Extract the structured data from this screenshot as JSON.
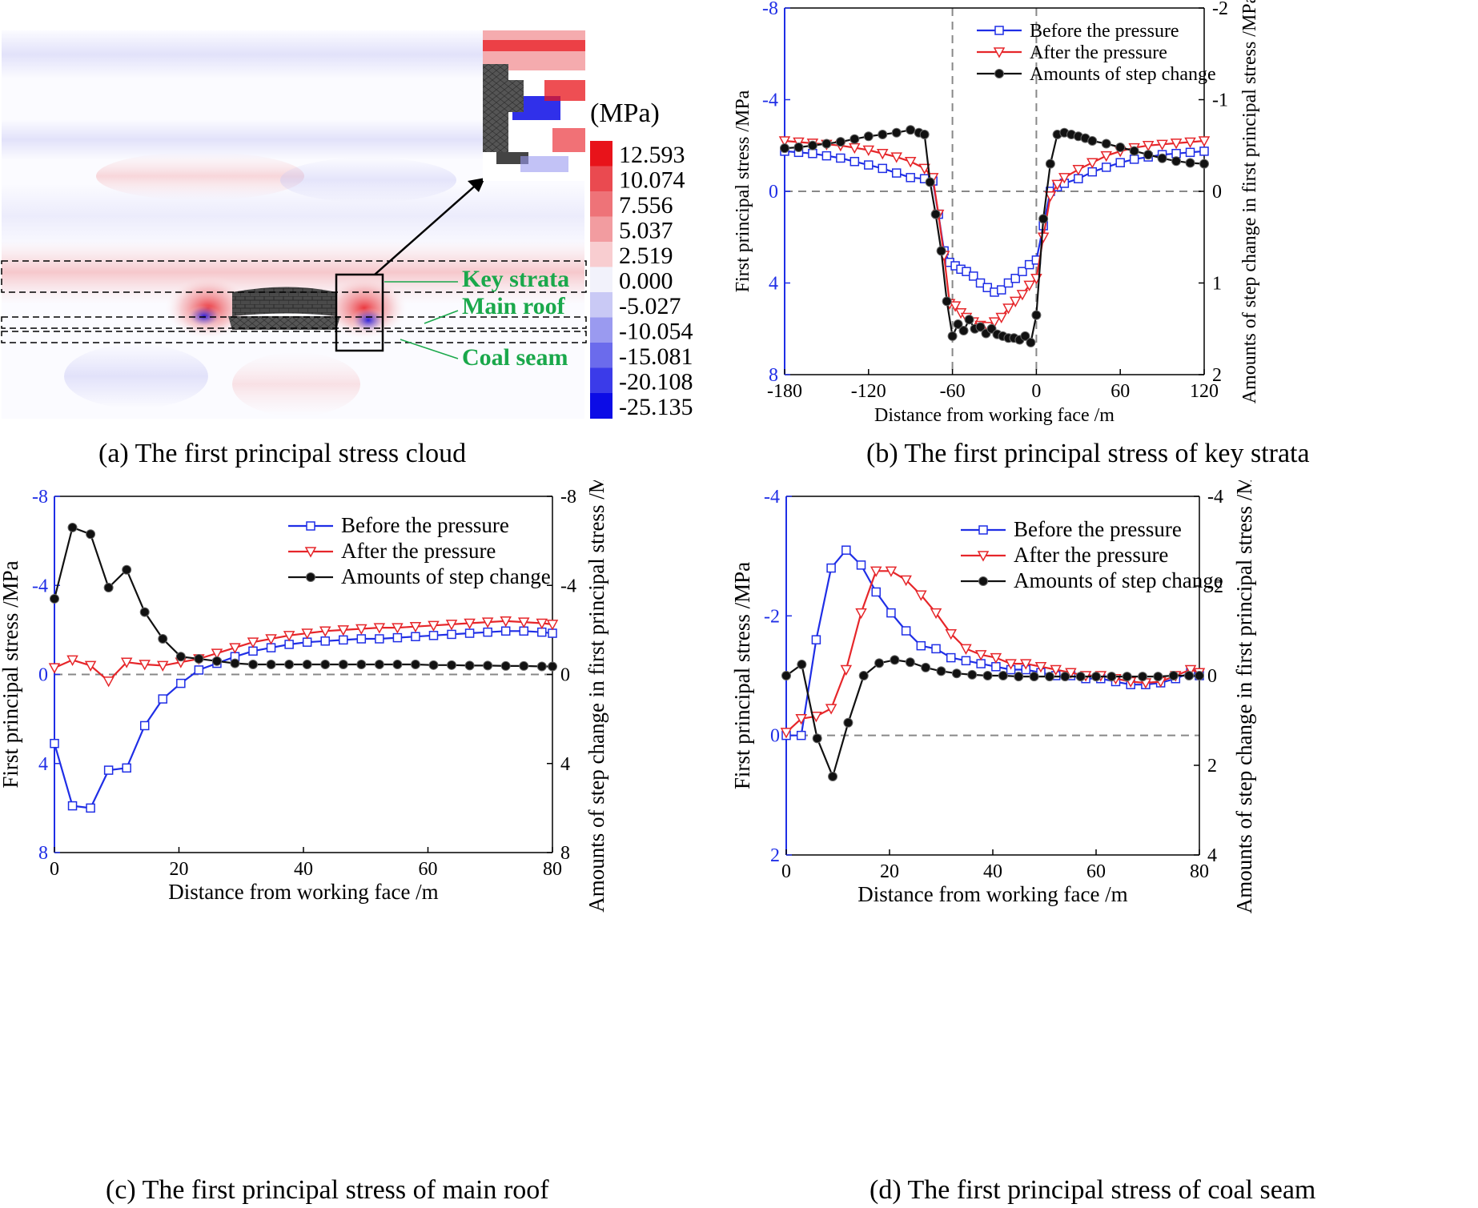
{
  "captions": {
    "a": "(a)  The first principal stress cloud",
    "b": "(b)  The first principal stress of key strata",
    "c": "(c)  The first principal stress of main roof",
    "d": "(d)  The first principal stress of coal seam"
  },
  "cloud": {
    "unit": "(MPa)",
    "legend_values": [
      "12.593",
      "10.074",
      "7.556",
      "5.037",
      "2.519",
      "0.000",
      "-5.027",
      "-10.054",
      "-15.081",
      "-20.108",
      "-25.135"
    ],
    "legend_colors": [
      "#e8131a",
      "#ea4a50",
      "#ee7378",
      "#f29ca0",
      "#f8cdd0",
      "#f2f2fb",
      "#c9c9f5",
      "#9a9af0",
      "#6b6bec",
      "#3b3be9",
      "#0c0ce6"
    ],
    "labels": {
      "key_strata": "Key strata",
      "main_roof": "Main roof",
      "coal_seam": "Coal seam"
    },
    "label_color": "#1aa84b"
  },
  "legend": {
    "before": "Before the pressure",
    "after": "After the pressure",
    "step": "Amounts of step change"
  },
  "colors": {
    "before": "#1f2ee6",
    "after": "#e6262a",
    "step": "#111111",
    "left_axis": "#1f2ee6"
  },
  "chart_data": [
    {
      "id": "b",
      "type": "line",
      "xlabel": "Distance from working face /m",
      "ylabel": "First principal stress /MPa",
      "ylabel2": "Amounts of step change in first principal stress /MPa",
      "xlim": [
        -180,
        120
      ],
      "xticks": [
        -180,
        -120,
        -60,
        0,
        60,
        120
      ],
      "ylim": [
        -8,
        8
      ],
      "yticks": [
        -8,
        -4,
        0,
        4,
        8
      ],
      "y_inverted": true,
      "y2lim": [
        -2,
        2
      ],
      "y2ticks": [
        -2,
        -1,
        0,
        1,
        2
      ],
      "vlines": [
        -60,
        0
      ],
      "series": [
        {
          "name": "Before the pressure",
          "axis": "left",
          "marker": "square",
          "x": [
            -180,
            -170,
            -160,
            -150,
            -140,
            -130,
            -120,
            -110,
            -100,
            -90,
            -80,
            -74,
            -70,
            -66,
            -62,
            -58,
            -54,
            -50,
            -45,
            -40,
            -35,
            -30,
            -25,
            -20,
            -15,
            -10,
            -5,
            0,
            5,
            10,
            15,
            20,
            30,
            40,
            50,
            60,
            70,
            80,
            90,
            100,
            110,
            120
          ],
          "y": [
            -1.75,
            -1.7,
            -1.65,
            -1.55,
            -1.45,
            -1.3,
            -1.15,
            -1.0,
            -0.8,
            -0.6,
            -0.55,
            -0.45,
            1.0,
            2.6,
            3.1,
            3.25,
            3.4,
            3.5,
            3.7,
            4.0,
            4.2,
            4.4,
            4.3,
            4.0,
            3.8,
            3.5,
            3.2,
            3.0,
            1.5,
            0.0,
            -0.2,
            -0.35,
            -0.55,
            -0.85,
            -1.05,
            -1.25,
            -1.4,
            -1.5,
            -1.6,
            -1.65,
            -1.7,
            -1.75
          ]
        },
        {
          "name": "After the pressure",
          "axis": "left",
          "marker": "tri_down",
          "x": [
            -180,
            -170,
            -160,
            -150,
            -140,
            -130,
            -120,
            -110,
            -100,
            -90,
            -80,
            -74,
            -70,
            -66,
            -62,
            -58,
            -54,
            -50,
            -45,
            -40,
            -35,
            -30,
            -25,
            -20,
            -15,
            -10,
            -5,
            0,
            5,
            10,
            15,
            20,
            30,
            40,
            50,
            60,
            70,
            80,
            90,
            100,
            110,
            120
          ],
          "y": [
            -2.2,
            -2.15,
            -2.1,
            -2.05,
            -2.0,
            -1.9,
            -1.8,
            -1.65,
            -1.5,
            -1.3,
            -1.0,
            -0.6,
            1.0,
            2.8,
            4.9,
            5.0,
            5.3,
            5.5,
            5.7,
            5.85,
            5.9,
            5.7,
            5.5,
            5.1,
            4.8,
            4.5,
            4.1,
            3.8,
            2.0,
            0.2,
            -0.3,
            -0.6,
            -0.95,
            -1.25,
            -1.55,
            -1.75,
            -1.9,
            -2.0,
            -2.05,
            -2.1,
            -2.15,
            -2.2
          ]
        },
        {
          "name": "Amounts of step change",
          "axis": "right",
          "marker": "circle",
          "x": [
            -180,
            -170,
            -160,
            -150,
            -140,
            -130,
            -120,
            -110,
            -100,
            -90,
            -84,
            -80,
            -76,
            -72,
            -68,
            -64,
            -60,
            -56,
            -52,
            -48,
            -44,
            -40,
            -36,
            -32,
            -28,
            -24,
            -20,
            -16,
            -12,
            -8,
            -4,
            0,
            5,
            10,
            15,
            20,
            25,
            30,
            35,
            40,
            50,
            60,
            70,
            80,
            90,
            100,
            110,
            120
          ],
          "y": [
            -0.47,
            -0.48,
            -0.5,
            -0.52,
            -0.54,
            -0.57,
            -0.6,
            -0.62,
            -0.64,
            -0.67,
            -0.64,
            -0.62,
            -0.1,
            0.25,
            0.65,
            1.2,
            1.58,
            1.45,
            1.52,
            1.4,
            1.5,
            1.48,
            1.55,
            1.5,
            1.56,
            1.58,
            1.6,
            1.6,
            1.62,
            1.58,
            1.65,
            1.35,
            0.3,
            -0.3,
            -0.62,
            -0.64,
            -0.62,
            -0.6,
            -0.58,
            -0.55,
            -0.52,
            -0.48,
            -0.44,
            -0.4,
            -0.36,
            -0.33,
            -0.31,
            -0.3
          ]
        }
      ]
    },
    {
      "id": "c",
      "type": "line",
      "xlabel": "Distance from working face /m",
      "ylabel": "First principal stress /MPa",
      "ylabel2": "Amounts of step change in first principal stress /MPa",
      "xlim": [
        0,
        80
      ],
      "xticks": [
        0,
        20,
        40,
        60,
        80
      ],
      "ylim": [
        -8,
        8
      ],
      "yticks": [
        -8,
        -4,
        0,
        4,
        8
      ],
      "y_inverted": true,
      "y2lim": [
        -8,
        8
      ],
      "y2ticks": [
        -8,
        -4,
        0,
        4,
        8
      ],
      "series": [
        {
          "name": "Before the pressure",
          "axis": "left",
          "marker": "square",
          "x": [
            0,
            2.9,
            5.8,
            8.7,
            11.6,
            14.5,
            17.4,
            20.3,
            23.2,
            26.1,
            29,
            31.9,
            34.8,
            37.7,
            40.6,
            43.5,
            46.4,
            49.3,
            52.2,
            55.1,
            58,
            60.9,
            63.8,
            66.7,
            69.6,
            72.5,
            75.4,
            78.3,
            80
          ],
          "y": [
            3.1,
            5.9,
            6.0,
            4.3,
            4.2,
            2.3,
            1.1,
            0.4,
            -0.2,
            -0.5,
            -0.8,
            -1.05,
            -1.2,
            -1.35,
            -1.45,
            -1.5,
            -1.55,
            -1.6,
            -1.6,
            -1.65,
            -1.7,
            -1.75,
            -1.8,
            -1.85,
            -1.9,
            -1.95,
            -1.95,
            -1.9,
            -1.85
          ]
        },
        {
          "name": "After the pressure",
          "axis": "left",
          "marker": "tri_down",
          "x": [
            0,
            2.9,
            5.8,
            8.7,
            11.6,
            14.5,
            17.4,
            20.3,
            23.2,
            26.1,
            29,
            31.9,
            34.8,
            37.7,
            40.6,
            43.5,
            46.4,
            49.3,
            52.2,
            55.1,
            58,
            60.9,
            63.8,
            66.7,
            69.6,
            72.5,
            75.4,
            78.3,
            80
          ],
          "y": [
            -0.3,
            -0.65,
            -0.4,
            0.3,
            -0.55,
            -0.45,
            -0.4,
            -0.55,
            -0.7,
            -0.95,
            -1.2,
            -1.45,
            -1.6,
            -1.75,
            -1.85,
            -1.95,
            -2.0,
            -2.05,
            -2.1,
            -2.1,
            -2.15,
            -2.2,
            -2.25,
            -2.3,
            -2.35,
            -2.4,
            -2.35,
            -2.3,
            -2.25
          ]
        },
        {
          "name": "Amounts of step change",
          "axis": "right",
          "marker": "circle",
          "x": [
            0,
            2.9,
            5.8,
            8.7,
            11.6,
            14.5,
            17.4,
            20.3,
            23.2,
            26.1,
            29,
            31.9,
            34.8,
            37.7,
            40.6,
            43.5,
            46.4,
            49.3,
            52.2,
            55.1,
            58,
            60.9,
            63.8,
            66.7,
            69.6,
            72.5,
            75.4,
            78.3,
            80
          ],
          "y": [
            -3.4,
            -6.6,
            -6.3,
            -3.9,
            -4.7,
            -2.8,
            -1.6,
            -0.8,
            -0.7,
            -0.6,
            -0.5,
            -0.45,
            -0.45,
            -0.45,
            -0.45,
            -0.45,
            -0.45,
            -0.45,
            -0.45,
            -0.45,
            -0.45,
            -0.42,
            -0.42,
            -0.4,
            -0.4,
            -0.38,
            -0.38,
            -0.36,
            -0.36
          ]
        }
      ]
    },
    {
      "id": "d",
      "type": "line",
      "xlabel": "Distance from working face /m",
      "ylabel": "First principal stress /MPa",
      "ylabel2": "Amounts of step change in first principal stress /MPa",
      "xlim": [
        0,
        80
      ],
      "xticks": [
        0,
        20,
        40,
        60,
        80
      ],
      "ylim": [
        -4,
        2
      ],
      "yticks": [
        -4,
        -2,
        0,
        2
      ],
      "y_inverted": true,
      "y2lim": [
        -4,
        4
      ],
      "y2ticks": [
        -4,
        -2,
        0,
        2,
        4
      ],
      "series": [
        {
          "name": "Before the pressure",
          "axis": "left",
          "marker": "square",
          "x": [
            0,
            2.9,
            5.8,
            8.7,
            11.6,
            14.5,
            17.4,
            20.3,
            23.2,
            26.1,
            29,
            31.9,
            34.8,
            37.7,
            40.6,
            43.5,
            46.4,
            49.3,
            52.2,
            55.1,
            58,
            60.9,
            63.8,
            66.7,
            69.6,
            72.5,
            75.4,
            78.3,
            80
          ],
          "y": [
            0.0,
            0.0,
            -1.6,
            -2.8,
            -3.1,
            -2.85,
            -2.4,
            -2.05,
            -1.75,
            -1.5,
            -1.45,
            -1.3,
            -1.25,
            -1.2,
            -1.15,
            -1.1,
            -1.1,
            -1.05,
            -1.0,
            -1.0,
            -0.95,
            -0.95,
            -0.9,
            -0.85,
            -0.85,
            -0.88,
            -0.95,
            -1.05,
            -1.0
          ]
        },
        {
          "name": "After the pressure",
          "axis": "left",
          "marker": "tri_down",
          "x": [
            0,
            2.9,
            5.8,
            8.7,
            11.6,
            14.5,
            17.4,
            20.3,
            23.2,
            26.1,
            29,
            31.9,
            34.8,
            37.7,
            40.6,
            43.5,
            46.4,
            49.3,
            52.2,
            55.1,
            58,
            60.9,
            63.8,
            66.7,
            69.6,
            72.5,
            75.4,
            78.3,
            80
          ],
          "y": [
            -0.05,
            -0.28,
            -0.32,
            -0.45,
            -1.1,
            -2.05,
            -2.75,
            -2.75,
            -2.6,
            -2.35,
            -2.05,
            -1.7,
            -1.45,
            -1.35,
            -1.3,
            -1.2,
            -1.2,
            -1.15,
            -1.1,
            -1.05,
            -1.0,
            -1.0,
            -0.95,
            -0.9,
            -0.88,
            -0.9,
            -1.0,
            -1.1,
            -1.05
          ]
        },
        {
          "name": "Amounts of step change",
          "axis": "right",
          "marker": "circle",
          "x": [
            0,
            3,
            6,
            9,
            12,
            15,
            18,
            21,
            24,
            27,
            30,
            33,
            36,
            39,
            42,
            45,
            48,
            51,
            54,
            57,
            60,
            63,
            66,
            69,
            72,
            75,
            78,
            80
          ],
          "y": [
            0.0,
            -0.25,
            1.4,
            2.25,
            1.05,
            0.0,
            -0.28,
            -0.35,
            -0.3,
            -0.18,
            -0.1,
            -0.05,
            -0.02,
            0.0,
            0.0,
            0.02,
            0.02,
            0.02,
            0.02,
            0.02,
            0.02,
            0.02,
            0.02,
            0.02,
            0.02,
            0.0,
            0.0,
            0.0
          ]
        }
      ]
    }
  ]
}
